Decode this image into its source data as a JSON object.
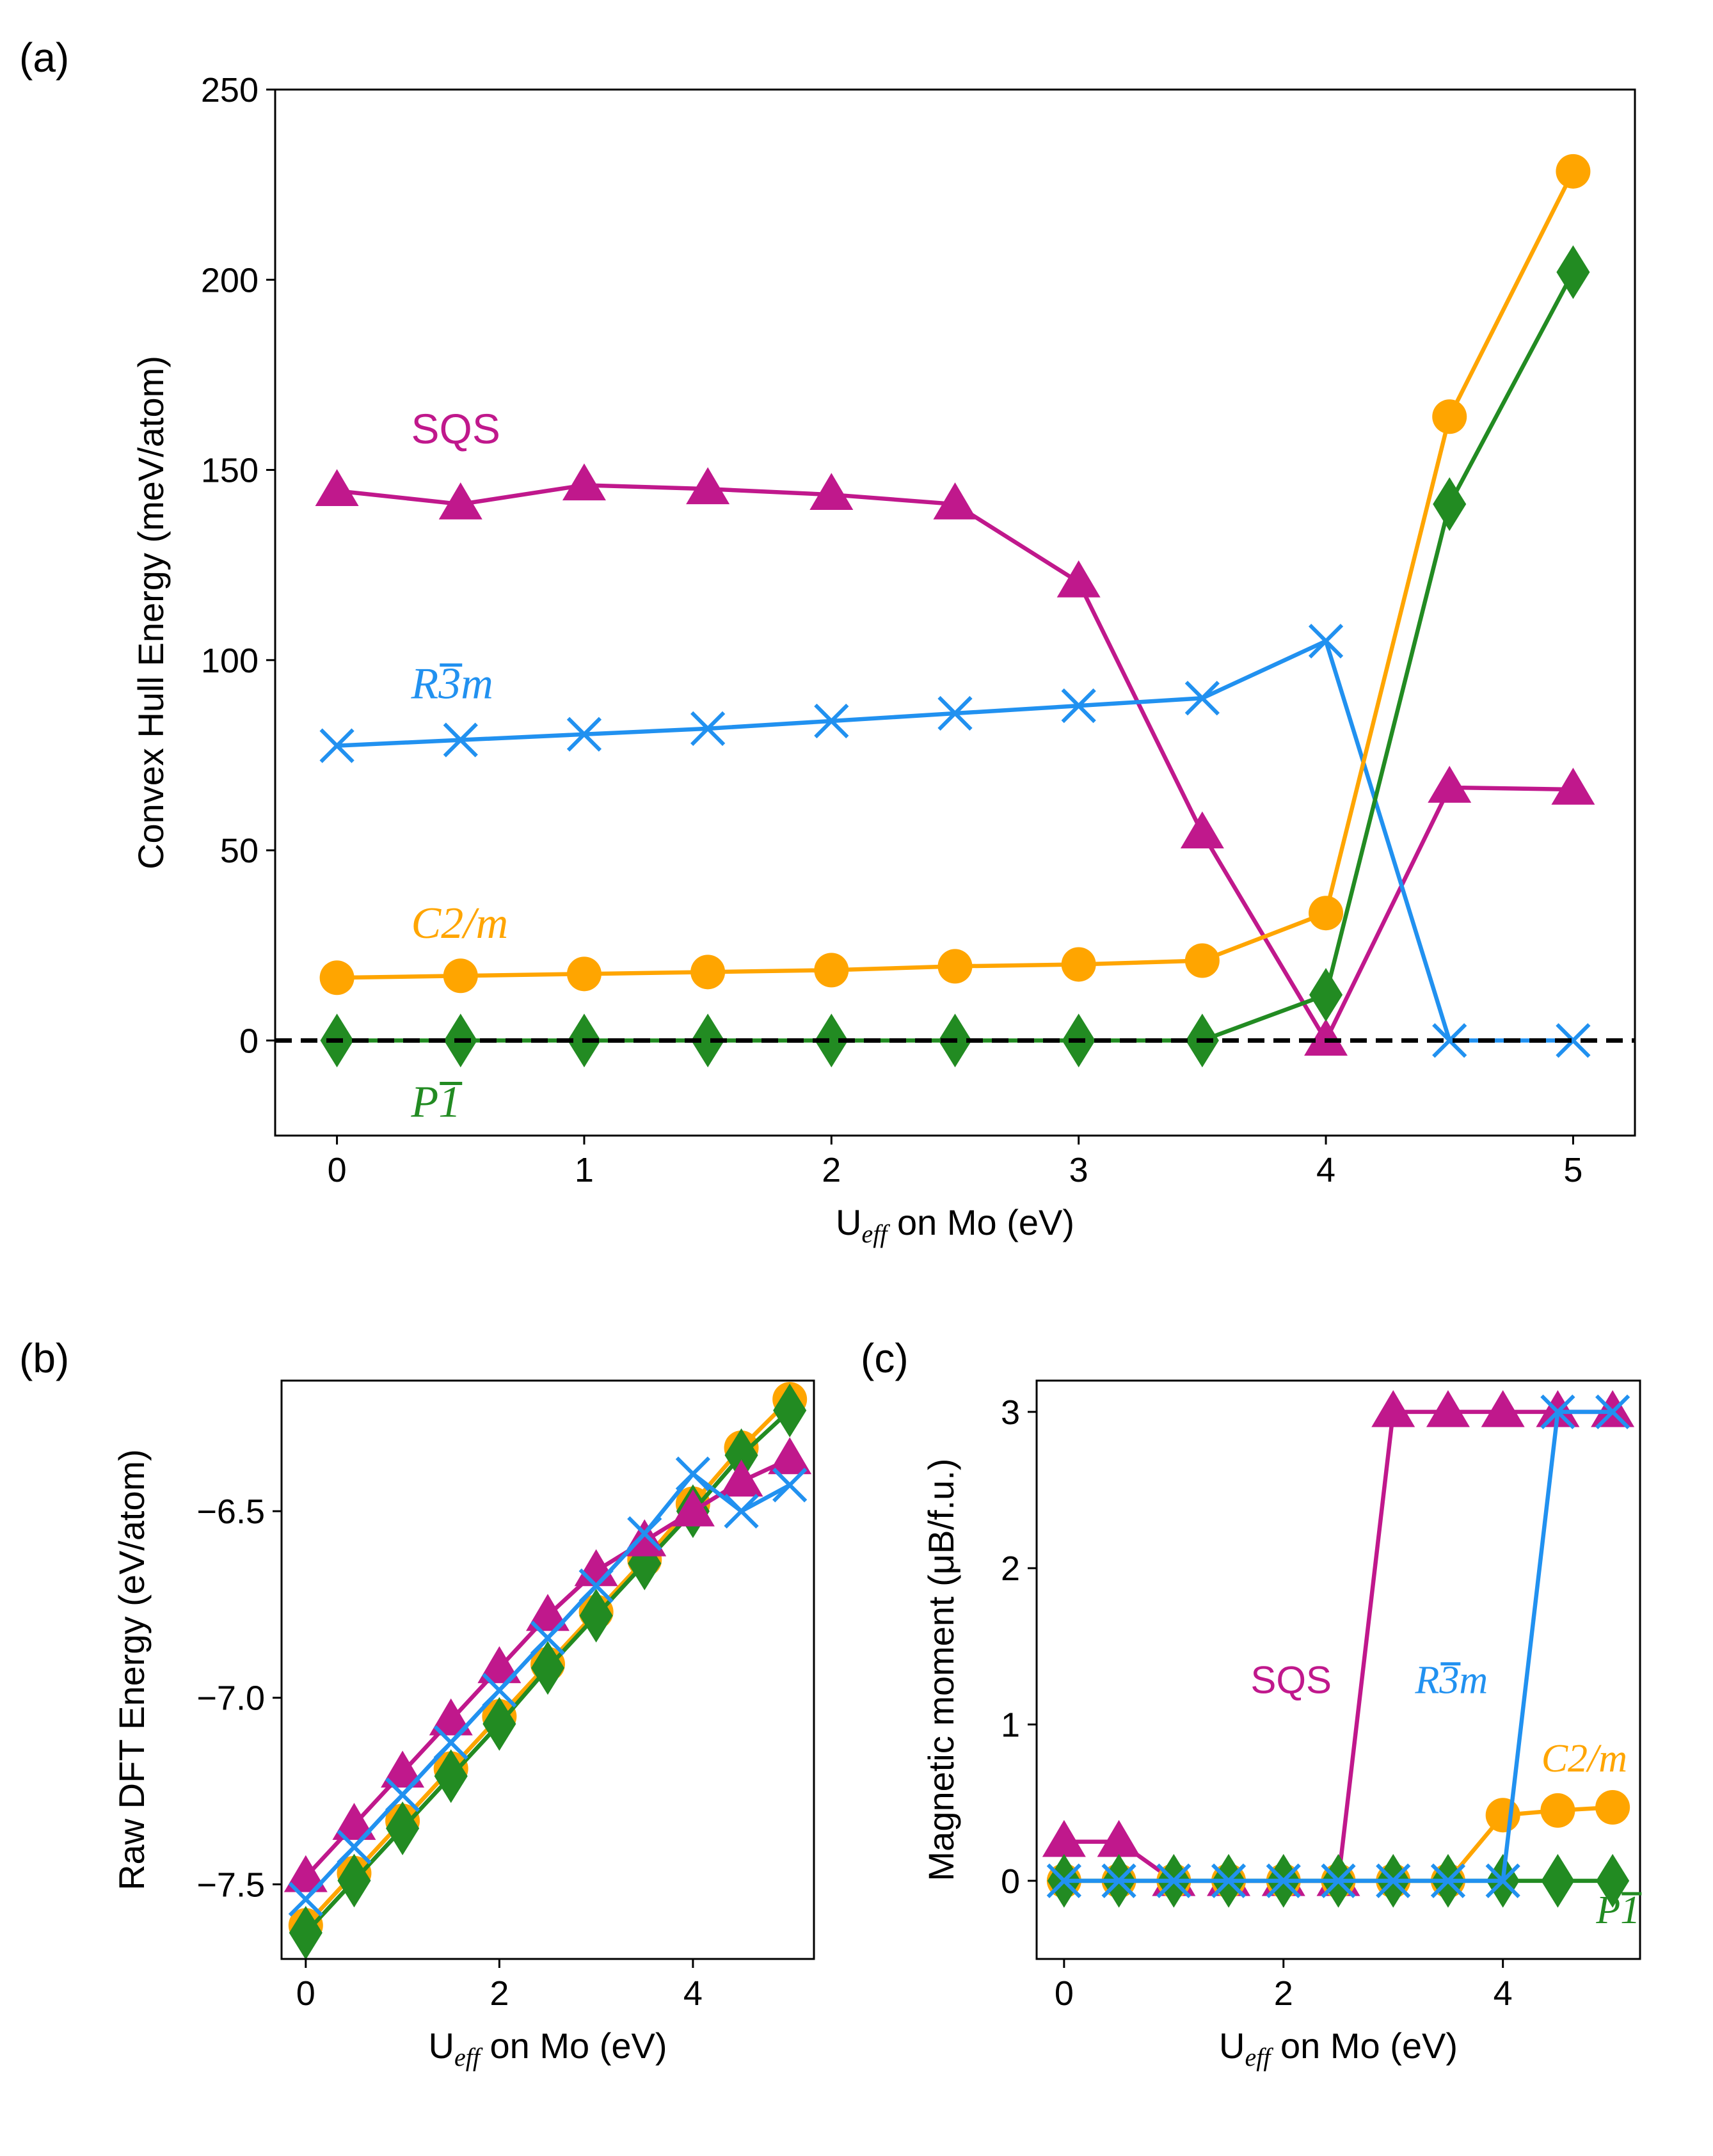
{
  "colors": {
    "SQS": "#c0188c",
    "R3m": "#2191f0",
    "C2m": "#ffa500",
    "P1": "#228b22",
    "hull_line": "#000000"
  },
  "chart_data": [
    {
      "id": "a",
      "type": "line",
      "panel_label": "(a)",
      "xlabel": {
        "main": "U",
        "sub": "eff",
        "rest": " on Mo (eV)"
      },
      "ylabel": "Convex Hull Energy (meV/atom)",
      "xlim": [
        -0.25,
        5.25
      ],
      "ylim": [
        -25,
        250
      ],
      "xticks": [
        0,
        1,
        2,
        3,
        4,
        5
      ],
      "yticks": [
        0,
        50,
        100,
        150,
        200,
        250
      ],
      "hline": {
        "y": 0,
        "style": "dashed"
      },
      "x": [
        0,
        0.5,
        1,
        1.5,
        2,
        2.5,
        3,
        3.5,
        4,
        4.5,
        5
      ],
      "series": [
        {
          "key": "SQS",
          "name": "SQS",
          "marker": "triangle",
          "values": [
            144.5,
            141,
            146,
            145,
            143.5,
            141,
            120.5,
            54.5,
            0,
            66.5,
            66
          ]
        },
        {
          "key": "R3m",
          "name": "R3m",
          "marker": "x",
          "values": [
            77.5,
            79,
            80.5,
            82,
            84,
            86,
            88,
            90,
            105,
            0,
            0
          ]
        },
        {
          "key": "C2m",
          "name": "C2/m",
          "marker": "circle",
          "values": [
            16.5,
            17,
            17.5,
            18,
            18.5,
            19.5,
            20,
            21,
            33.5,
            164,
            228.5
          ]
        },
        {
          "key": "P1",
          "name": "P1",
          "marker": "diamond",
          "values": [
            0,
            0,
            0,
            0,
            0,
            0,
            0,
            0,
            12,
            141,
            202
          ]
        }
      ],
      "labels": [
        {
          "series": "SQS",
          "text": "SQS",
          "style": "plain",
          "x": 0.3,
          "y": 157
        },
        {
          "series": "R3m",
          "text": "R3m",
          "style": "italic-bar",
          "x": 0.3,
          "y": 90
        },
        {
          "series": "C2m",
          "text": "C2/m",
          "style": "italic",
          "x": 0.3,
          "y": 27
        },
        {
          "series": "P1",
          "text": "P1",
          "style": "italic-bar",
          "x": 0.3,
          "y": -20
        }
      ]
    },
    {
      "id": "b",
      "type": "line",
      "panel_label": "(b)",
      "xlabel": {
        "main": "U",
        "sub": "eff",
        "rest": " on Mo (eV)"
      },
      "ylabel": "Raw DFT Energy (eV/atom)",
      "xlim": [
        -0.25,
        5.25
      ],
      "ylim": [
        -7.7,
        -6.15
      ],
      "xticks": [
        0,
        2,
        4
      ],
      "yticks": [
        -7.5,
        -7.0,
        -6.5
      ],
      "ytick_labels": [
        "−7.5",
        "−7.0",
        "−6.5"
      ],
      "x": [
        0,
        0.5,
        1,
        1.5,
        2,
        2.5,
        3,
        3.5,
        4,
        4.5,
        5
      ],
      "series": [
        {
          "key": "C2m",
          "name": "C2/m",
          "marker": "circle",
          "values": [
            -7.61,
            -7.47,
            -7.33,
            -7.19,
            -7.05,
            -6.91,
            -6.77,
            -6.63,
            -6.48,
            -6.33,
            -6.2
          ]
        },
        {
          "key": "P1",
          "name": "P1",
          "marker": "diamond",
          "values": [
            -7.63,
            -7.49,
            -7.35,
            -7.21,
            -7.07,
            -6.92,
            -6.78,
            -6.64,
            -6.5,
            -6.35,
            -6.23
          ]
        },
        {
          "key": "SQS",
          "name": "SQS",
          "marker": "triangle",
          "values": [
            -7.48,
            -7.34,
            -7.2,
            -7.06,
            -6.92,
            -6.78,
            -6.66,
            -6.58,
            -6.5,
            -6.42,
            -6.36
          ]
        },
        {
          "key": "R3m",
          "name": "R3m",
          "marker": "x",
          "values": [
            -7.54,
            -7.4,
            -7.26,
            -7.12,
            -6.98,
            -6.84,
            -6.7,
            -6.56,
            -6.4,
            -6.5,
            -6.43
          ]
        }
      ]
    },
    {
      "id": "c",
      "type": "line",
      "panel_label": "(c)",
      "xlabel": {
        "main": "U",
        "sub": "eff",
        "rest": " on Mo (eV)"
      },
      "ylabel": "Magnetic moment (μB/f.u.)",
      "xlim": [
        -0.25,
        5.25
      ],
      "ylim": [
        -0.5,
        3.2
      ],
      "xticks": [
        0,
        2,
        4
      ],
      "yticks": [
        0,
        1,
        2,
        3
      ],
      "x": [
        0,
        0.5,
        1,
        1.5,
        2,
        2.5,
        3,
        3.5,
        4,
        4.5,
        5
      ],
      "series": [
        {
          "key": "SQS",
          "name": "SQS",
          "marker": "triangle",
          "values": [
            0.25,
            0.25,
            0,
            0,
            0,
            0,
            3,
            3,
            3,
            3,
            3
          ]
        },
        {
          "key": "C2m",
          "name": "C2/m",
          "marker": "circle",
          "values": [
            0,
            0,
            0,
            0,
            0,
            0,
            0,
            0,
            0.42,
            0.45,
            0.47
          ]
        },
        {
          "key": "P1",
          "name": "P1",
          "marker": "diamond",
          "values": [
            0,
            0,
            0,
            0,
            0,
            0,
            0,
            0,
            0,
            0,
            0
          ]
        },
        {
          "key": "R3m",
          "name": "R3m",
          "marker": "x",
          "values": [
            0,
            0,
            0,
            0,
            0,
            0,
            0,
            0,
            0,
            3,
            3
          ]
        }
      ],
      "labels": [
        {
          "series": "SQS",
          "text": "SQS",
          "style": "plain",
          "x": 1.7,
          "y": 1.2
        },
        {
          "series": "R3m",
          "text": "R3m",
          "style": "italic-bar",
          "x": 3.2,
          "y": 1.2
        },
        {
          "series": "C2m",
          "text": "C2/m",
          "style": "italic",
          "x": 4.35,
          "y": 0.7
        },
        {
          "series": "P1",
          "text": "P1",
          "style": "italic-bar",
          "x": 4.85,
          "y": -0.27
        }
      ]
    }
  ]
}
